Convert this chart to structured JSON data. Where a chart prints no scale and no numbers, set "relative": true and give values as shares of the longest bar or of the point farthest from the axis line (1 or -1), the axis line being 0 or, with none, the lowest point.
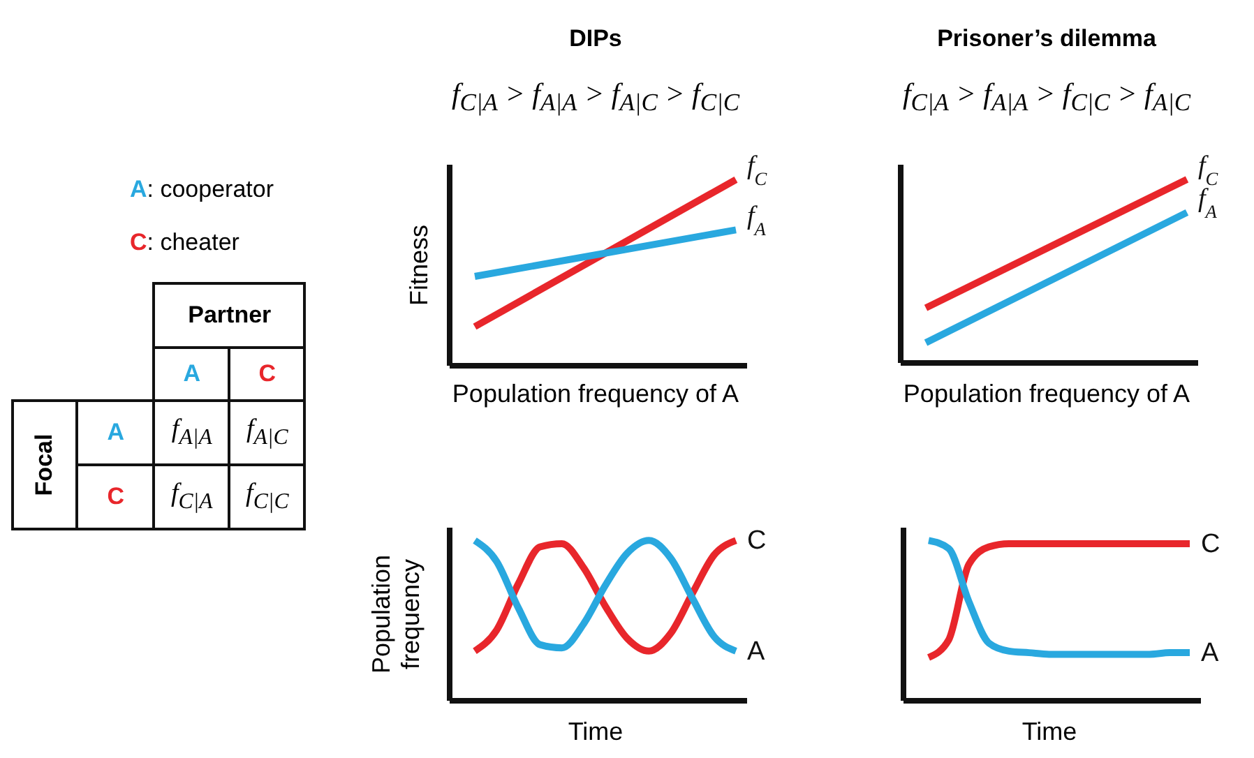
{
  "chart_data": [
    {
      "type": "other",
      "annotations": [
        "A: cooperator",
        "C: cheater"
      ],
      "colors": [
        "#29a8df",
        "#e8262b"
      ],
      "xlabel": "Partner",
      "ylabel": "Focal",
      "categories": [
        "A",
        "C"
      ],
      "y_categories": [
        "A",
        "C"
      ],
      "cell_labels": [
        [
          "f$_{A|A}$",
          "f$_{A|C}$"
        ],
        [
          "f$_{C|A}$",
          "f$_{C|C}$"
        ]
      ]
    },
    {
      "type": "line",
      "relative": true,
      "title": "DIPs",
      "subtitle": "f$_{C|A}$ > f$_{A|A}$ > f$_{A|C}$ > f$_{C|C}$",
      "xlabel": "Population frequency of A",
      "ylabel": "Fitness",
      "categories": [
        null,
        null
      ],
      "series": [
        {
          "name": "f$_{C}$",
          "color": "#e8262b",
          "values": [
            0.21,
            1
          ]
        },
        {
          "name": "f$_{A}$",
          "color": "#29a8df",
          "values": [
            0.48,
            0.73
          ]
        }
      ]
    },
    {
      "type": "line",
      "relative": true,
      "title": "Prisoner’s dilemma",
      "subtitle": "f$_{C|A}$ > f$_{A|A}$ > f$_{C|C}$ > f$_{A|C}$",
      "xlabel": "Population frequency of A",
      "categories": [
        null,
        null
      ],
      "series": [
        {
          "name": "f$_{C}$",
          "color": "#e8262b",
          "values": [
            0.3,
            1
          ]
        },
        {
          "name": "f$_{A}$",
          "color": "#29a8df",
          "values": [
            0.11,
            0.82
          ]
        }
      ]
    },
    {
      "type": "line",
      "relative": true,
      "xlabel": "Time",
      "ylabel": "Population frequency",
      "categories": [
        null,
        null,
        null,
        null,
        null,
        null,
        null,
        null,
        null,
        null,
        null,
        null,
        null
      ],
      "series": [
        {
          "name": "C",
          "color": "#e8262b",
          "values": [
            0.31,
            0.44,
            0.73,
            0.96,
            0.98,
            0.83,
            0.59,
            0.39,
            0.31,
            0.42,
            0.67,
            0.91,
            1.0
          ]
        },
        {
          "name": "A",
          "color": "#29a8df",
          "values": [
            1.0,
            0.87,
            0.58,
            0.35,
            0.33,
            0.48,
            0.72,
            0.92,
            1.0,
            0.89,
            0.64,
            0.4,
            0.31
          ]
        }
      ]
    },
    {
      "type": "line",
      "relative": true,
      "xlabel": "Time",
      "categories": [
        null,
        null,
        null,
        null,
        null,
        null,
        null,
        null,
        null,
        null,
        null,
        null,
        null,
        null
      ],
      "series": [
        {
          "name": "C",
          "color": "#e8262b",
          "values": [
            0.27,
            0.38,
            0.85,
            0.96,
            0.98,
            0.98,
            0.98,
            0.98,
            0.98,
            0.98,
            0.98,
            0.98,
            0.98,
            0.98
          ]
        },
        {
          "name": "A",
          "color": "#29a8df",
          "values": [
            1.0,
            0.95,
            0.62,
            0.36,
            0.31,
            0.3,
            0.29,
            0.29,
            0.29,
            0.29,
            0.29,
            0.29,
            0.3,
            0.3
          ]
        }
      ]
    }
  ]
}
